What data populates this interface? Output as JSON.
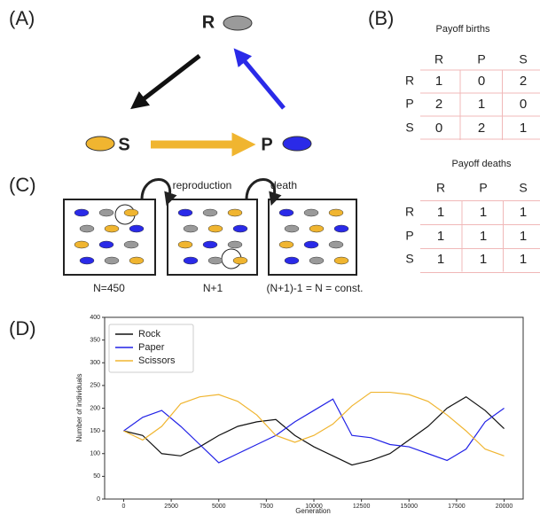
{
  "panel_labels": [
    "(A)",
    "(B)",
    "(C)",
    "(D)"
  ],
  "diagram": {
    "nodes": [
      "R",
      "S",
      "P"
    ]
  },
  "payoff_births": {
    "title": "Payoff births",
    "columns": [
      "R",
      "P",
      "S"
    ],
    "rows": [
      {
        "label": "R",
        "values": [
          1,
          0,
          2
        ]
      },
      {
        "label": "P",
        "values": [
          2,
          1,
          0
        ]
      },
      {
        "label": "S",
        "values": [
          0,
          2,
          1
        ]
      }
    ]
  },
  "payoff_deaths": {
    "title": "Payoff deaths",
    "columns": [
      "R",
      "P",
      "S"
    ],
    "rows": [
      {
        "label": "R",
        "values": [
          1,
          1,
          1
        ]
      },
      {
        "label": "P",
        "values": [
          1,
          1,
          1
        ]
      },
      {
        "label": "S",
        "values": [
          1,
          1,
          1
        ]
      }
    ]
  },
  "process": {
    "steps": [
      "reproduction",
      "death"
    ],
    "captions": [
      "N=450",
      "N+1",
      "(N+1)-1 = N = const."
    ]
  },
  "chart_data": {
    "type": "line",
    "xlabel": "Generation",
    "ylabel": "Number of individuals",
    "x": [
      0,
      1000,
      2000,
      3000,
      4000,
      5000,
      6000,
      7000,
      8000,
      9000,
      10000,
      11000,
      12000,
      13000,
      14000,
      15000,
      16000,
      17000,
      18000,
      19000,
      20000
    ],
    "series": [
      {
        "name": "Rock",
        "color": "#111111",
        "values": [
          150,
          140,
          100,
          95,
          115,
          140,
          160,
          170,
          175,
          140,
          115,
          95,
          75,
          85,
          100,
          130,
          160,
          200,
          225,
          195,
          155
        ]
      },
      {
        "name": "Paper",
        "color": "#2222e6",
        "values": [
          150,
          180,
          195,
          160,
          120,
          80,
          100,
          120,
          140,
          170,
          195,
          220,
          140,
          135,
          120,
          115,
          100,
          85,
          110,
          170,
          200
        ]
      },
      {
        "name": "Scissors",
        "color": "#f0b530",
        "values": [
          150,
          130,
          160,
          210,
          225,
          230,
          215,
          185,
          140,
          125,
          140,
          165,
          205,
          235,
          235,
          230,
          215,
          185,
          150,
          110,
          95
        ]
      }
    ],
    "xlim": [
      -1000,
      21000
    ],
    "ylim": [
      0,
      400
    ],
    "xticks": [
      0,
      2500,
      5000,
      7500,
      10000,
      12500,
      15000,
      17500,
      20000
    ],
    "yticks": [
      0,
      50,
      100,
      150,
      200,
      250,
      300,
      350,
      400
    ],
    "legend": "upper-left"
  }
}
